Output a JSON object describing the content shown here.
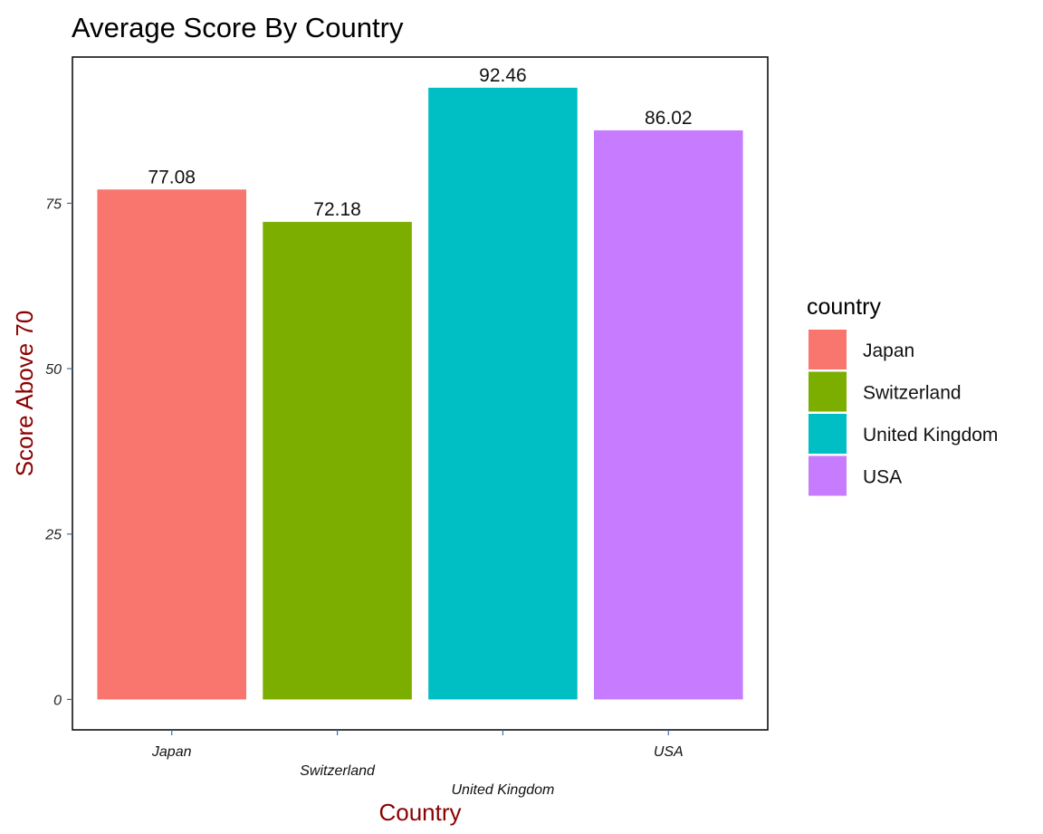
{
  "chart_data": {
    "type": "bar",
    "title": "Average Score By Country",
    "xlabel": "Country",
    "ylabel": "Score Above 70",
    "categories": [
      "Japan",
      "Switzerland",
      "United Kingdom",
      "USA"
    ],
    "values": [
      77.08,
      72.18,
      92.46,
      86.02
    ],
    "data_labels": [
      "77.08",
      "72.18",
      "92.46",
      "86.02"
    ],
    "colors": [
      "#F8766D",
      "#7CAE00",
      "#00BFC4",
      "#C77CFF"
    ],
    "yticks": [
      0,
      25,
      50,
      75
    ],
    "ylim": [
      -4.6,
      97.1
    ],
    "grid": false,
    "axis_title_color": "#8B0000",
    "legend": {
      "title": "country",
      "placement": "right",
      "entries": [
        "Japan",
        "Switzerland",
        "United Kingdom",
        "USA"
      ]
    }
  }
}
